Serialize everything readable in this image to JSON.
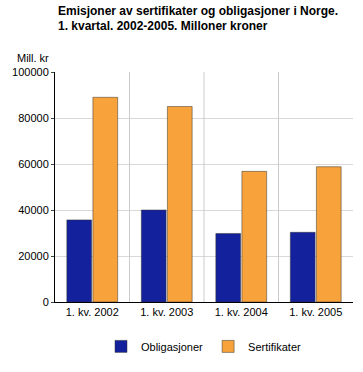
{
  "chart_data": {
    "type": "bar",
    "title": "Emisjoner av sertifikater og obligasjoner i Norge.",
    "subtitle": "1. kvartal. 2002-2005. Milloner kroner",
    "y_label": "Mill. kr",
    "categories": [
      "1. kv. 2002",
      "1. kv. 2003",
      "1. kv. 2004",
      "1. kv. 2005"
    ],
    "series": [
      {
        "name": "Obligasjoner",
        "color": "#14219c",
        "values": [
          35700,
          40000,
          29800,
          30300
        ]
      },
      {
        "name": "Sertifikater",
        "color": "#f7a23a",
        "values": [
          89000,
          85000,
          56800,
          58800
        ]
      }
    ],
    "ylim": [
      0,
      100000
    ],
    "yticks": [
      0,
      20000,
      40000,
      60000,
      80000,
      100000
    ],
    "grid": true,
    "legend": "bottom"
  }
}
